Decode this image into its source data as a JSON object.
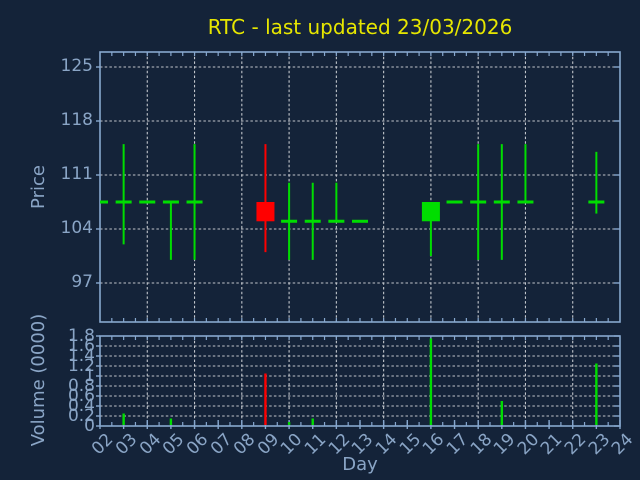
{
  "title": "RTC - last updated 23/03/2026",
  "colors": {
    "background": "#142339",
    "axis_border": "#87a8cf",
    "grid": "#c2c6cc",
    "tick_text": "#8aa5c6",
    "title_text": "#e6e600",
    "up_green": "#00dd00",
    "down_red": "#ff0000"
  },
  "chart_data": {
    "type": "candlestick",
    "title": "RTC - last updated 23/03/2026",
    "xlabel": "Day",
    "grid": true,
    "x_range": [
      2,
      24
    ],
    "x_tick_labels": [
      "02",
      "03",
      "04",
      "05",
      "06",
      "07",
      "08",
      "09",
      "10",
      "11",
      "12",
      "13",
      "14",
      "15",
      "16",
      "17",
      "18",
      "19",
      "20",
      "21",
      "22",
      "23",
      "24"
    ],
    "x_gridline_days": [
      4,
      6,
      8,
      10,
      12,
      14,
      16,
      18,
      20,
      22
    ],
    "price_axis": {
      "label": "Price",
      "ticks": [
        125,
        118,
        111,
        104,
        97
      ],
      "range": [
        92,
        127
      ]
    },
    "volume_axis": {
      "label": "Volume (0000)",
      "ticks": [
        0,
        0.2,
        0.4,
        0.6,
        0.8,
        1,
        1.2,
        1.4,
        1.6,
        1.8
      ],
      "tick_labels": [
        "0",
        "0.2",
        "0.4",
        "0.6",
        "0.8",
        "1",
        "1.2",
        "1.4",
        "1.6",
        "1.8"
      ],
      "range": [
        0,
        1.8
      ]
    },
    "candles": [
      {
        "day": 2,
        "open": 107.5,
        "high": 107.5,
        "low": 107.5,
        "close": 107.5,
        "volume": 0
      },
      {
        "day": 3,
        "open": 107.5,
        "high": 115,
        "low": 102,
        "close": 107.5,
        "volume": 0.25
      },
      {
        "day": 4,
        "open": 107.5,
        "high": 107.5,
        "low": 107.5,
        "close": 107.5,
        "volume": 0
      },
      {
        "day": 5,
        "open": 107.5,
        "high": 107.5,
        "low": 100,
        "close": 107.5,
        "volume": 0.15
      },
      {
        "day": 6,
        "open": 107.5,
        "high": 115,
        "low": 100,
        "close": 107.5,
        "volume": 0
      },
      {
        "day": 9,
        "open": 107.5,
        "high": 115,
        "low": 101,
        "close": 105,
        "volume": 1.05
      },
      {
        "day": 10,
        "open": 105,
        "high": 110,
        "low": 100,
        "close": 105,
        "volume": 0.08
      },
      {
        "day": 11,
        "open": 105,
        "high": 110,
        "low": 100,
        "close": 105,
        "volume": 0.15
      },
      {
        "day": 12,
        "open": 105,
        "high": 110,
        "low": 105,
        "close": 105,
        "volume": 0
      },
      {
        "day": 13,
        "open": 105,
        "high": 105,
        "low": 105,
        "close": 105,
        "volume": 0
      },
      {
        "day": 16,
        "open": 105,
        "high": 107.5,
        "low": 100.5,
        "close": 107.5,
        "volume": 1.75
      },
      {
        "day": 17,
        "open": 107.5,
        "high": 107.5,
        "low": 107.5,
        "close": 107.5,
        "volume": 0
      },
      {
        "day": 18,
        "open": 107.5,
        "high": 115,
        "low": 100,
        "close": 107.5,
        "volume": 0
      },
      {
        "day": 19,
        "open": 107.5,
        "high": 115,
        "low": 100,
        "close": 107.5,
        "volume": 0.5
      },
      {
        "day": 20,
        "open": 107.5,
        "high": 115,
        "low": 107.5,
        "close": 107.5,
        "volume": 0
      },
      {
        "day": 23,
        "open": 107.5,
        "high": 114,
        "low": 106,
        "close": 107.5,
        "volume": 1.25
      }
    ]
  }
}
